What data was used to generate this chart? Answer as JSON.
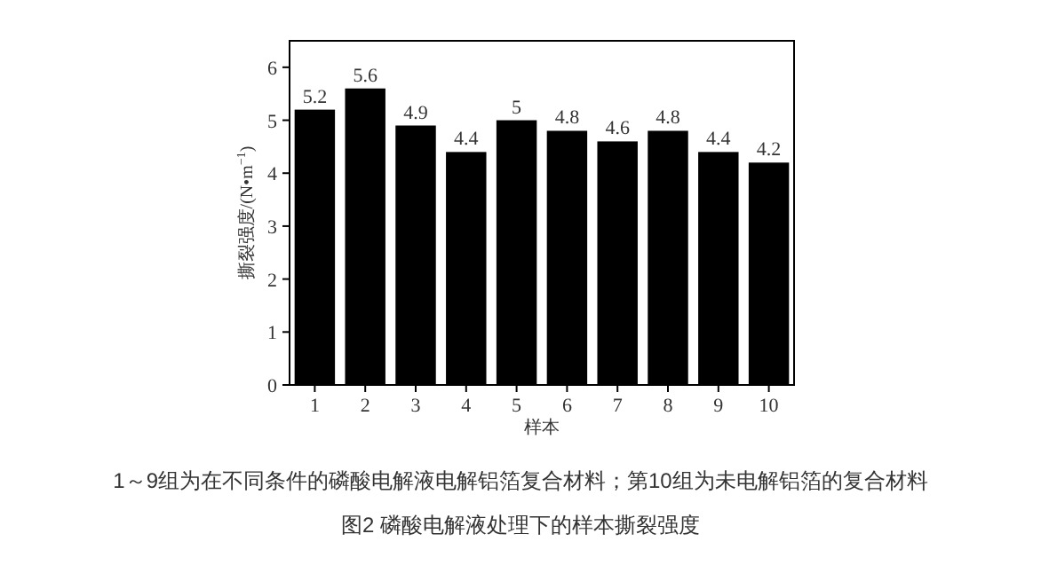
{
  "chart_data": {
    "type": "bar",
    "title": "图2 磷酸电解液处理下的样本撕裂强度",
    "annotations": [
      "1～9组为在不同条件的磷酸电解液电解铝箔复合材料；第10组为未电解铝箔的复合材料"
    ],
    "xlabel": "样本",
    "ylabel": "撕裂强度/(N•m$^{−1}$)",
    "categories": [
      "1",
      "2",
      "3",
      "4",
      "5",
      "6",
      "7",
      "8",
      "9",
      "10"
    ],
    "values": [
      5.2,
      5.6,
      4.9,
      4.4,
      5,
      4.8,
      4.6,
      4.8,
      4.4,
      4.2
    ],
    "color": "#000000",
    "ylim": [
      0,
      6.5
    ],
    "yticks": [
      0,
      1,
      2,
      3,
      4,
      5,
      6
    ],
    "data_labels": true,
    "grid": false
  }
}
